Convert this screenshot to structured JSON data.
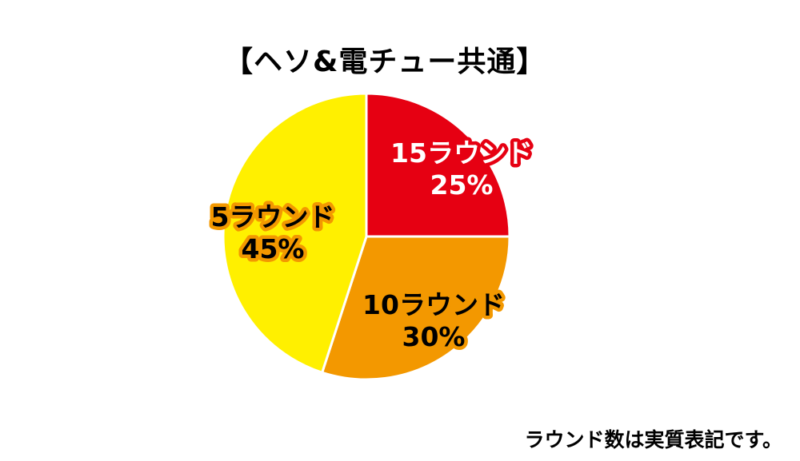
{
  "chart_data": {
    "type": "pie",
    "title": "【ヘソ&電チュー共通】",
    "slices": [
      {
        "label": "15ラウンド",
        "value": 25,
        "value_label": "25%",
        "color": "#e60012",
        "text_color": "#ffffff",
        "outline_color": "#e60012"
      },
      {
        "label": "10ラウンド",
        "value": 30,
        "value_label": "30%",
        "color": "#f39800",
        "text_color": "#000000",
        "outline_color": "#f39800"
      },
      {
        "label": "5ラウンド",
        "value": 45,
        "value_label": "45%",
        "color": "#fff000",
        "text_color": "#000000",
        "outline_color": "#f39800"
      }
    ],
    "start": "12 o'clock",
    "direction": "clockwise"
  },
  "footnote": "ラウンド数は実質表記です。"
}
